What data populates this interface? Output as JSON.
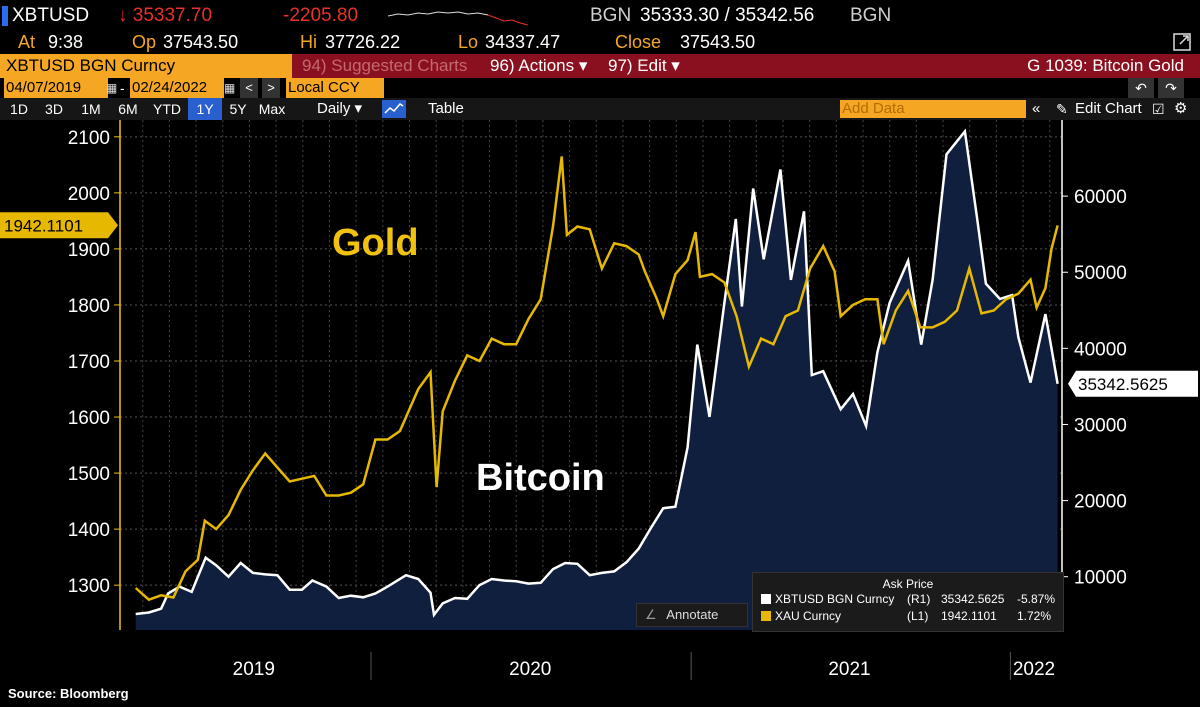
{
  "ticker": {
    "symbol": "XBTUSD",
    "last": "↓ 35337.70",
    "change": "-2205.80",
    "source": "BGN",
    "bid_ask": "35333.30 / 35342.56",
    "source2": "BGN",
    "at_label": "At",
    "at": "9:38",
    "op_label": "Op",
    "op": "37543.50",
    "hi_label": "Hi",
    "hi": "37726.22",
    "lo_label": "Lo",
    "lo": "34337.47",
    "close_label": "Close",
    "close": "37543.50"
  },
  "toolbar": {
    "security": "XBTUSD BGN Curncy",
    "suggested": "94) Suggested Charts",
    "actions": "96) Actions ▾",
    "edit": "97) Edit ▾",
    "page_title": "G 1039: Bitcoin Gold",
    "date_start": "04/07/2019",
    "date_end": "02/24/2022",
    "currency": "Local CCY",
    "ranges": [
      "1D",
      "3D",
      "1M",
      "6M",
      "YTD",
      "1Y",
      "5Y",
      "Max"
    ],
    "active_range": "1Y",
    "period": "Daily ▾",
    "table": "Table",
    "add_data": "Add Data",
    "edit_chart": "Edit Chart"
  },
  "chart_data": {
    "type": "line",
    "labels": {
      "gold": "Gold",
      "bitcoin": "Bitcoin"
    },
    "x_ticks": [
      "2019",
      "2020",
      "2021",
      "2022"
    ],
    "left_axis": {
      "ticks": [
        1300,
        1400,
        1500,
        1600,
        1700,
        1800,
        1900,
        2000,
        2100
      ],
      "ylim": [
        1220,
        2130
      ]
    },
    "right_axis": {
      "ticks": [
        10000,
        20000,
        30000,
        40000,
        50000,
        60000
      ],
      "ylim": [
        3000,
        70000
      ]
    },
    "last_gold": "1942.1101",
    "last_btc": "35342.5625",
    "series": [
      {
        "name": "XAU Curncy",
        "axis": "left",
        "color": "#e6b800",
        "points": [
          [
            "2019-04-07",
            1295
          ],
          [
            "2019-04-22",
            1274
          ],
          [
            "2019-05-06",
            1282
          ],
          [
            "2019-05-20",
            1278
          ],
          [
            "2019-06-03",
            1325
          ],
          [
            "2019-06-17",
            1345
          ],
          [
            "2019-06-25",
            1415
          ],
          [
            "2019-07-08",
            1400
          ],
          [
            "2019-07-22",
            1425
          ],
          [
            "2019-08-05",
            1470
          ],
          [
            "2019-08-19",
            1505
          ],
          [
            "2019-09-02",
            1535
          ],
          [
            "2019-09-16",
            1510
          ],
          [
            "2019-09-30",
            1485
          ],
          [
            "2019-10-14",
            1490
          ],
          [
            "2019-10-28",
            1495
          ],
          [
            "2019-11-11",
            1460
          ],
          [
            "2019-11-25",
            1460
          ],
          [
            "2019-12-09",
            1465
          ],
          [
            "2019-12-23",
            1480
          ],
          [
            "2020-01-06",
            1560
          ],
          [
            "2020-01-20",
            1560
          ],
          [
            "2020-02-03",
            1575
          ],
          [
            "2020-02-24",
            1650
          ],
          [
            "2020-03-09",
            1680
          ],
          [
            "2020-03-16",
            1475
          ],
          [
            "2020-03-23",
            1610
          ],
          [
            "2020-04-06",
            1665
          ],
          [
            "2020-04-20",
            1710
          ],
          [
            "2020-05-04",
            1700
          ],
          [
            "2020-05-18",
            1740
          ],
          [
            "2020-06-01",
            1730
          ],
          [
            "2020-06-15",
            1730
          ],
          [
            "2020-06-29",
            1775
          ],
          [
            "2020-07-13",
            1810
          ],
          [
            "2020-07-27",
            1940
          ],
          [
            "2020-08-06",
            2065
          ],
          [
            "2020-08-12",
            1925
          ],
          [
            "2020-08-24",
            1940
          ],
          [
            "2020-09-07",
            1935
          ],
          [
            "2020-09-21",
            1865
          ],
          [
            "2020-10-05",
            1910
          ],
          [
            "2020-10-19",
            1905
          ],
          [
            "2020-11-02",
            1890
          ],
          [
            "2020-11-09",
            1860
          ],
          [
            "2020-11-23",
            1810
          ],
          [
            "2020-11-30",
            1780
          ],
          [
            "2020-12-14",
            1855
          ],
          [
            "2020-12-28",
            1880
          ],
          [
            "2021-01-06",
            1930
          ],
          [
            "2021-01-11",
            1850
          ],
          [
            "2021-01-25",
            1855
          ],
          [
            "2021-02-08",
            1840
          ],
          [
            "2021-02-22",
            1780
          ],
          [
            "2021-03-08",
            1690
          ],
          [
            "2021-03-22",
            1740
          ],
          [
            "2021-04-05",
            1730
          ],
          [
            "2021-04-19",
            1780
          ],
          [
            "2021-05-03",
            1790
          ],
          [
            "2021-05-17",
            1865
          ],
          [
            "2021-06-01",
            1905
          ],
          [
            "2021-06-14",
            1860
          ],
          [
            "2021-06-21",
            1780
          ],
          [
            "2021-07-05",
            1800
          ],
          [
            "2021-07-19",
            1810
          ],
          [
            "2021-08-02",
            1810
          ],
          [
            "2021-08-09",
            1730
          ],
          [
            "2021-08-23",
            1790
          ],
          [
            "2021-09-06",
            1825
          ],
          [
            "2021-09-20",
            1760
          ],
          [
            "2021-10-04",
            1760
          ],
          [
            "2021-10-18",
            1770
          ],
          [
            "2021-11-01",
            1790
          ],
          [
            "2021-11-15",
            1865
          ],
          [
            "2021-11-29",
            1785
          ],
          [
            "2021-12-13",
            1790
          ],
          [
            "2021-12-27",
            1810
          ],
          [
            "2022-01-10",
            1820
          ],
          [
            "2022-01-24",
            1845
          ],
          [
            "2022-01-31",
            1795
          ],
          [
            "2022-02-10",
            1830
          ],
          [
            "2022-02-17",
            1900
          ],
          [
            "2022-02-24",
            1942
          ]
        ]
      },
      {
        "name": "XBTUSD BGN Curncy",
        "axis": "right",
        "color": "#ffffff",
        "fill": "#0f1f3d",
        "points": [
          [
            "2019-04-07",
            5100
          ],
          [
            "2019-04-22",
            5300
          ],
          [
            "2019-05-06",
            5800
          ],
          [
            "2019-05-14",
            7800
          ],
          [
            "2019-05-27",
            8700
          ],
          [
            "2019-06-10",
            8000
          ],
          [
            "2019-06-26",
            12500
          ],
          [
            "2019-07-08",
            11500
          ],
          [
            "2019-07-22",
            10000
          ],
          [
            "2019-08-05",
            11800
          ],
          [
            "2019-08-19",
            10500
          ],
          [
            "2019-09-02",
            10300
          ],
          [
            "2019-09-16",
            10200
          ],
          [
            "2019-09-30",
            8300
          ],
          [
            "2019-10-14",
            8300
          ],
          [
            "2019-10-26",
            9500
          ],
          [
            "2019-11-11",
            8700
          ],
          [
            "2019-11-25",
            7200
          ],
          [
            "2019-12-09",
            7500
          ],
          [
            "2019-12-23",
            7300
          ],
          [
            "2020-01-06",
            7800
          ],
          [
            "2020-01-20",
            8700
          ],
          [
            "2020-02-10",
            10200
          ],
          [
            "2020-02-24",
            9700
          ],
          [
            "2020-03-09",
            7900
          ],
          [
            "2020-03-13",
            5000
          ],
          [
            "2020-03-23",
            6500
          ],
          [
            "2020-04-06",
            7200
          ],
          [
            "2020-04-20",
            7100
          ],
          [
            "2020-05-04",
            8900
          ],
          [
            "2020-05-18",
            9700
          ],
          [
            "2020-06-01",
            9500
          ],
          [
            "2020-06-15",
            9400
          ],
          [
            "2020-06-29",
            9100
          ],
          [
            "2020-07-13",
            9200
          ],
          [
            "2020-07-27",
            11000
          ],
          [
            "2020-08-10",
            11800
          ],
          [
            "2020-08-24",
            11700
          ],
          [
            "2020-09-07",
            10200
          ],
          [
            "2020-09-21",
            10500
          ],
          [
            "2020-10-05",
            10700
          ],
          [
            "2020-10-19",
            11900
          ],
          [
            "2020-11-02",
            13700
          ],
          [
            "2020-11-16",
            16400
          ],
          [
            "2020-11-30",
            19000
          ],
          [
            "2020-12-14",
            19200
          ],
          [
            "2020-12-28",
            27000
          ],
          [
            "2021-01-08",
            40500
          ],
          [
            "2021-01-22",
            31000
          ],
          [
            "2021-02-08",
            46000
          ],
          [
            "2021-02-21",
            57000
          ],
          [
            "2021-02-28",
            45500
          ],
          [
            "2021-03-13",
            61000
          ],
          [
            "2021-03-25",
            51700
          ],
          [
            "2021-04-13",
            63500
          ],
          [
            "2021-04-25",
            49000
          ],
          [
            "2021-05-10",
            58000
          ],
          [
            "2021-05-19",
            36500
          ],
          [
            "2021-06-01",
            37000
          ],
          [
            "2021-06-21",
            32000
          ],
          [
            "2021-07-05",
            34000
          ],
          [
            "2021-07-20",
            29800
          ],
          [
            "2021-08-02",
            39500
          ],
          [
            "2021-08-16",
            46000
          ],
          [
            "2021-09-06",
            51500
          ],
          [
            "2021-09-21",
            40500
          ],
          [
            "2021-10-04",
            49000
          ],
          [
            "2021-10-20",
            65500
          ],
          [
            "2021-11-10",
            68500
          ],
          [
            "2021-11-24",
            57000
          ],
          [
            "2021-12-04",
            48500
          ],
          [
            "2021-12-20",
            46500
          ],
          [
            "2022-01-03",
            47000
          ],
          [
            "2022-01-10",
            41500
          ],
          [
            "2022-01-24",
            35500
          ],
          [
            "2022-02-10",
            44500
          ],
          [
            "2022-02-17",
            40000
          ],
          [
            "2022-02-24",
            35342
          ]
        ]
      }
    ],
    "legend": {
      "title": "Ask Price",
      "rows": [
        {
          "name": "XBTUSD BGN Curncy",
          "axis": "(R1)",
          "value": "35342.5625",
          "change": "-5.87%",
          "color": "#ffffff"
        },
        {
          "name": "XAU Curncy",
          "axis": "(L1)",
          "value": "1942.1101",
          "change": "1.72%",
          "color": "#e6b800"
        }
      ]
    },
    "annotate": "Annotate"
  },
  "footer": "Source: Bloomberg"
}
